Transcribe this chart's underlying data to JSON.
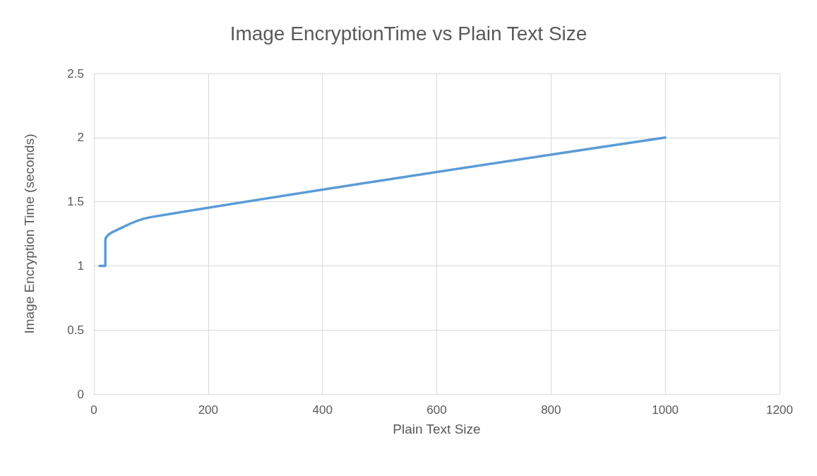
{
  "chart_data": {
    "type": "line",
    "title": "Image EncryptionTime vs Plain Text Size",
    "xlabel": "Plain Text Size",
    "ylabel": "Image Encryption Time (seconds)",
    "series": [
      {
        "color": "#5b9bd5",
        "x": [
          10,
          20,
          20,
          50,
          100,
          1000
        ],
        "values": [
          1,
          1,
          1.2,
          1.3,
          1.38,
          2
        ]
      }
    ],
    "xlim": [
      0,
      1200
    ],
    "xticks": [
      0,
      200,
      400,
      600,
      800,
      1000,
      1200
    ],
    "ylim": [
      0,
      2.5
    ],
    "yticks": [
      0,
      0.5,
      1,
      1.5,
      2,
      2.5
    ],
    "grid": true,
    "marker": "none",
    "line_style": "solid"
  }
}
